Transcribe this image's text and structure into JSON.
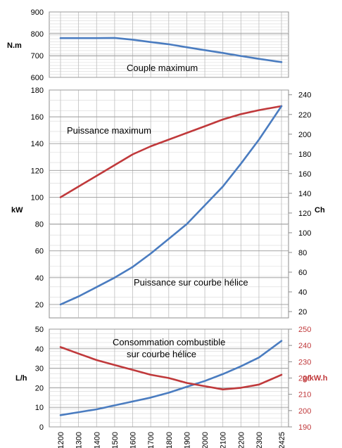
{
  "chart_data": [
    {
      "type": "line",
      "x": [
        1200,
        1300,
        1400,
        1500,
        1600,
        1700,
        1800,
        1900,
        2000,
        2100,
        2200,
        2300,
        2425
      ],
      "ylabel": "N.m",
      "ylim": [
        600,
        900
      ],
      "yticks": [
        600,
        700,
        800,
        900
      ],
      "annotation": "Couple maximum",
      "series": [
        {
          "color": "#4a7cc0",
          "values": [
            780,
            780,
            780,
            781,
            773,
            762,
            752,
            738,
            725,
            712,
            698,
            685,
            670
          ]
        }
      ]
    },
    {
      "type": "line",
      "x": [
        1200,
        1300,
        1400,
        1500,
        1600,
        1700,
        1800,
        1900,
        2000,
        2100,
        2200,
        2300,
        2425
      ],
      "ylabel": "kW",
      "ylabel_right": "Ch",
      "ylim": [
        10,
        180
      ],
      "yticks": [
        20,
        40,
        60,
        80,
        100,
        120,
        140,
        160,
        180
      ],
      "ylim_right": [
        13.6,
        244.8
      ],
      "yticks_right": [
        20,
        40,
        60,
        80,
        100,
        120,
        140,
        160,
        180,
        200,
        220,
        240
      ],
      "annotations": [
        "Puissance maximum",
        "Puissance sur courbe hélice"
      ],
      "series": [
        {
          "color": "#c0393b",
          "values": [
            100,
            108,
            116,
            124,
            132,
            138,
            143,
            148,
            153,
            158,
            162,
            165,
            168
          ]
        },
        {
          "color": "#4a7cc0",
          "values": [
            20,
            26,
            33,
            40,
            48,
            58,
            69,
            80,
            94,
            108,
            125,
            143,
            168
          ]
        }
      ]
    },
    {
      "type": "line",
      "x": [
        1200,
        1300,
        1400,
        1500,
        1600,
        1700,
        1800,
        1900,
        2000,
        2100,
        2200,
        2300,
        2425
      ],
      "ylabel": "L/h",
      "ylabel_right": "g/kW.h",
      "ylim": [
        0,
        50
      ],
      "yticks": [
        0,
        10,
        20,
        30,
        40,
        50
      ],
      "ylim_right": [
        190,
        250
      ],
      "yticks_right": [
        190,
        200,
        210,
        220,
        230,
        240,
        250
      ],
      "annotation": [
        "Consommation combustible",
        "sur courbe hélice"
      ],
      "xticklabels": [
        "1200",
        "1300",
        "1400",
        "1500",
        "1600",
        "1700",
        "1800",
        "1900",
        "2000",
        "2100",
        "2200",
        "2300",
        "2425"
      ],
      "series": [
        {
          "color": "#4a7cc0",
          "axis": "left",
          "values": [
            6,
            7.5,
            9,
            11,
            13,
            15,
            17.5,
            20.5,
            23.5,
            27,
            31,
            35.5,
            44
          ]
        },
        {
          "color": "#c0393b",
          "axis": "right",
          "values": [
            239,
            235,
            231,
            228,
            225,
            222,
            220,
            217,
            215,
            213,
            214,
            216,
            222
          ]
        }
      ]
    }
  ]
}
